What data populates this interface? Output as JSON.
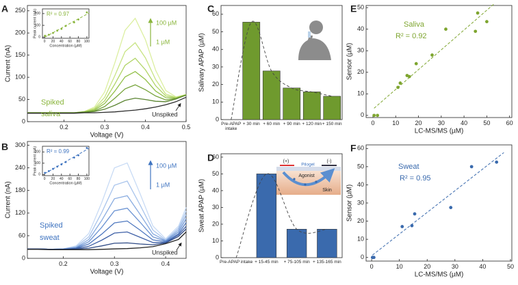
{
  "chart_data": [
    {
      "type": "line",
      "panel_label": "A",
      "xlabel": "Voltage (V)",
      "ylabel": "Current (nA)",
      "x": [
        0.11,
        0.15,
        0.175,
        0.2,
        0.225,
        0.25,
        0.275,
        0.3,
        0.325,
        0.35,
        0.375,
        0.4,
        0.425,
        0.45,
        0.475,
        0.5
      ],
      "series": [
        {
          "color": "#dcefa0",
          "values": [
            20,
            20,
            20,
            20,
            20,
            23,
            33,
            67,
            133,
            206,
            233,
            185,
            116,
            70,
            56,
            61
          ]
        },
        {
          "color": "#c8e483",
          "values": [
            20,
            20,
            20,
            20,
            20,
            23,
            30,
            55,
            104,
            158,
            178,
            144,
            95,
            62,
            55,
            61
          ]
        },
        {
          "color": "#b0d465",
          "values": [
            20,
            20,
            20,
            20,
            20,
            22,
            28,
            47,
            85,
            127,
            143,
            117,
            81,
            58,
            54,
            61
          ]
        },
        {
          "color": "#93c04a",
          "values": [
            20,
            20,
            20,
            20,
            20,
            22,
            26,
            41,
            69,
            101,
            113,
            95,
            69,
            54,
            53,
            60
          ]
        },
        {
          "color": "#76a33a",
          "values": [
            20,
            20,
            20,
            20,
            20,
            22,
            24,
            34,
            53,
            74,
            83,
            72,
            58,
            49,
            52,
            60
          ]
        },
        {
          "color": "#5a8430",
          "values": [
            20,
            20,
            20,
            20,
            20,
            21,
            23,
            28,
            37,
            48,
            53,
            50,
            46,
            45,
            51,
            60
          ]
        },
        {
          "color": "#2b2b2b",
          "values": [
            19,
            19,
            19,
            19,
            19,
            20,
            20,
            21,
            22,
            24,
            26,
            29,
            33,
            38,
            45,
            55
          ]
        }
      ],
      "xlim": [
        0.11,
        0.5
      ],
      "ylim": [
        0,
        262
      ],
      "xticks": [
        0.2,
        0.3,
        0.4,
        0.5
      ],
      "yticks": [
        0,
        50,
        100,
        150,
        200,
        250
      ],
      "annotations": [
        "100 µM",
        "1 µM",
        "Spiked",
        "saliva",
        "Unspiked"
      ],
      "annotation_color": "#8ab53c",
      "inset": {
        "type": "scatter",
        "xlabel": "Concentration (µM)",
        "ylabel": "Peak current (nA)",
        "annotation": "R² = 0.97",
        "x": [
          1,
          10,
          20,
          30,
          40,
          50,
          70,
          80,
          100
        ],
        "values": [
          12,
          20,
          35,
          55,
          70,
          95,
          125,
          150,
          210
        ],
        "color": "#8ab53c",
        "xlim": [
          -5,
          105
        ],
        "ylim": [
          -10,
          240
        ],
        "xticks": [
          0,
          20,
          40,
          60,
          80,
          100
        ],
        "yticks": [
          0,
          100,
          200
        ]
      }
    },
    {
      "type": "line",
      "panel_label": "B",
      "xlabel": "Voltage (V)",
      "ylabel": "Current (nA)",
      "x": [
        0.13,
        0.15,
        0.175,
        0.2,
        0.225,
        0.25,
        0.275,
        0.3,
        0.325,
        0.35,
        0.375,
        0.4,
        0.425,
        0.44
      ],
      "series": [
        {
          "color": "#c8dbf5",
          "values": [
            25,
            25,
            24,
            25,
            33,
            66,
            147,
            240,
            253,
            172,
            86,
            52,
            85,
            135
          ]
        },
        {
          "color": "#a8c4ec",
          "values": [
            25,
            25,
            24,
            25,
            31,
            57,
            121,
            194,
            205,
            142,
            75,
            49,
            80,
            125
          ]
        },
        {
          "color": "#88abe0",
          "values": [
            25,
            25,
            24,
            25,
            29,
            50,
            100,
            158,
            166,
            117,
            65,
            47,
            75,
            115
          ]
        },
        {
          "color": "#6a92d2",
          "values": [
            25,
            25,
            24,
            25,
            28,
            44,
            82,
            126,
            133,
            96,
            57,
            46,
            70,
            105
          ]
        },
        {
          "color": "#4f78bf",
          "values": [
            25,
            25,
            24,
            24,
            27,
            38,
            64,
            94,
            99,
            75,
            49,
            44,
            65,
            95
          ]
        },
        {
          "color": "#3d5fa6",
          "values": [
            25,
            25,
            24,
            24,
            26,
            32,
            48,
            67,
            70,
            56,
            42,
            42,
            62,
            85
          ]
        },
        {
          "color": "#2e4a85",
          "values": [
            25,
            25,
            24,
            24,
            25,
            27,
            33,
            40,
            41,
            38,
            36,
            41,
            58,
            78
          ]
        },
        {
          "color": "#222222",
          "values": [
            24,
            24,
            23,
            23,
            23,
            23,
            24,
            25,
            26,
            28,
            31,
            39,
            50,
            70
          ]
        }
      ],
      "xlim": [
        0.13,
        0.44
      ],
      "ylim": [
        0,
        310
      ],
      "xticks": [
        0.2,
        0.3,
        0.4
      ],
      "yticks": [
        0,
        60,
        120,
        180,
        240,
        300
      ],
      "annotations": [
        "100 µM",
        "1 µM",
        "Spiked",
        "sweat",
        "Unspiked"
      ],
      "annotation_color": "#3f74c0",
      "inset": {
        "type": "scatter",
        "xlabel": "Concentration (µM)",
        "ylabel": "Peak current (nA)",
        "annotation": "R² = 0.99",
        "x": [
          1,
          10,
          20,
          30,
          40,
          50,
          70,
          80,
          100
        ],
        "values": [
          15,
          30,
          50,
          70,
          90,
          110,
          150,
          170,
          235
        ],
        "color": "#3f74c0",
        "xlim": [
          -5,
          105
        ],
        "ylim": [
          -10,
          250
        ],
        "xticks": [
          0,
          20,
          40,
          60,
          80,
          100
        ],
        "yticks": [
          0,
          100,
          200
        ]
      }
    },
    {
      "type": "bar",
      "panel_label": "C",
      "ylabel": "Salivary APAP (µM)",
      "categories": [
        "Pre-APAP intake",
        "+ 30 min",
        "+ 60 min",
        "+ 90 min",
        "+ 120 min",
        "+ 150 min"
      ],
      "values": [
        0,
        55.5,
        27.7,
        18,
        15.8,
        13.3
      ],
      "color": "#6f9a2e",
      "ylim": [
        0,
        65
      ],
      "yticks": [
        0,
        10,
        20,
        30,
        40,
        50,
        60
      ]
    },
    {
      "type": "bar",
      "panel_label": "D",
      "ylabel": "Sweat APAP (µM)",
      "categories": [
        "Pre-APAP intake",
        "+ 15-45 min",
        "+ 75-105 min",
        "+ 135-165 min"
      ],
      "values": [
        0,
        50,
        17,
        17
      ],
      "color": "#3a6aad",
      "ylim": [
        0,
        62
      ],
      "yticks": [
        0,
        10,
        20,
        30,
        40,
        50,
        60
      ],
      "diagram_labels": [
        "(+)",
        "(-)",
        "Pilogel",
        "Agonist",
        "Skin"
      ]
    },
    {
      "type": "scatter",
      "panel_label": "E",
      "xlabel": "LC-MS/MS (µM)",
      "ylabel": "Sensor (µM)",
      "x": [
        0.5,
        2,
        11,
        12,
        15,
        16,
        19,
        26,
        32,
        45,
        46,
        50
      ],
      "values": [
        0,
        0,
        13,
        15,
        18.5,
        18,
        24,
        28,
        40,
        39,
        47.5,
        43.5
      ],
      "color": "#7ea52f",
      "xlim": [
        -3,
        61
      ],
      "ylim": [
        -1,
        51
      ],
      "xticks": [
        0,
        10,
        20,
        30,
        40,
        50,
        60
      ],
      "yticks": [
        0,
        10,
        20,
        30,
        40,
        50
      ],
      "annotations": [
        "Saliva",
        "R² = 0.92"
      ],
      "annotation_color": "#7ea52f"
    },
    {
      "type": "scatter",
      "panel_label": "F",
      "xlabel": "LC-MS/MS (µM)",
      "ylabel": "Sensor (µM)",
      "x": [
        0.3,
        0.8,
        11,
        14.5,
        15.5,
        28.5,
        36,
        45
      ],
      "values": [
        0,
        0,
        17,
        17.5,
        24,
        27.5,
        50,
        52.5
      ],
      "color": "#3a6aad",
      "xlim": [
        -2,
        50.5
      ],
      "ylim": [
        -2,
        62
      ],
      "xticks": [
        0,
        10,
        20,
        30,
        40,
        50
      ],
      "yticks": [
        0,
        10,
        20,
        30,
        40,
        50,
        60
      ],
      "annotations": [
        "Sweat",
        "R² = 0.95"
      ],
      "annotation_color": "#3a6aad"
    }
  ]
}
